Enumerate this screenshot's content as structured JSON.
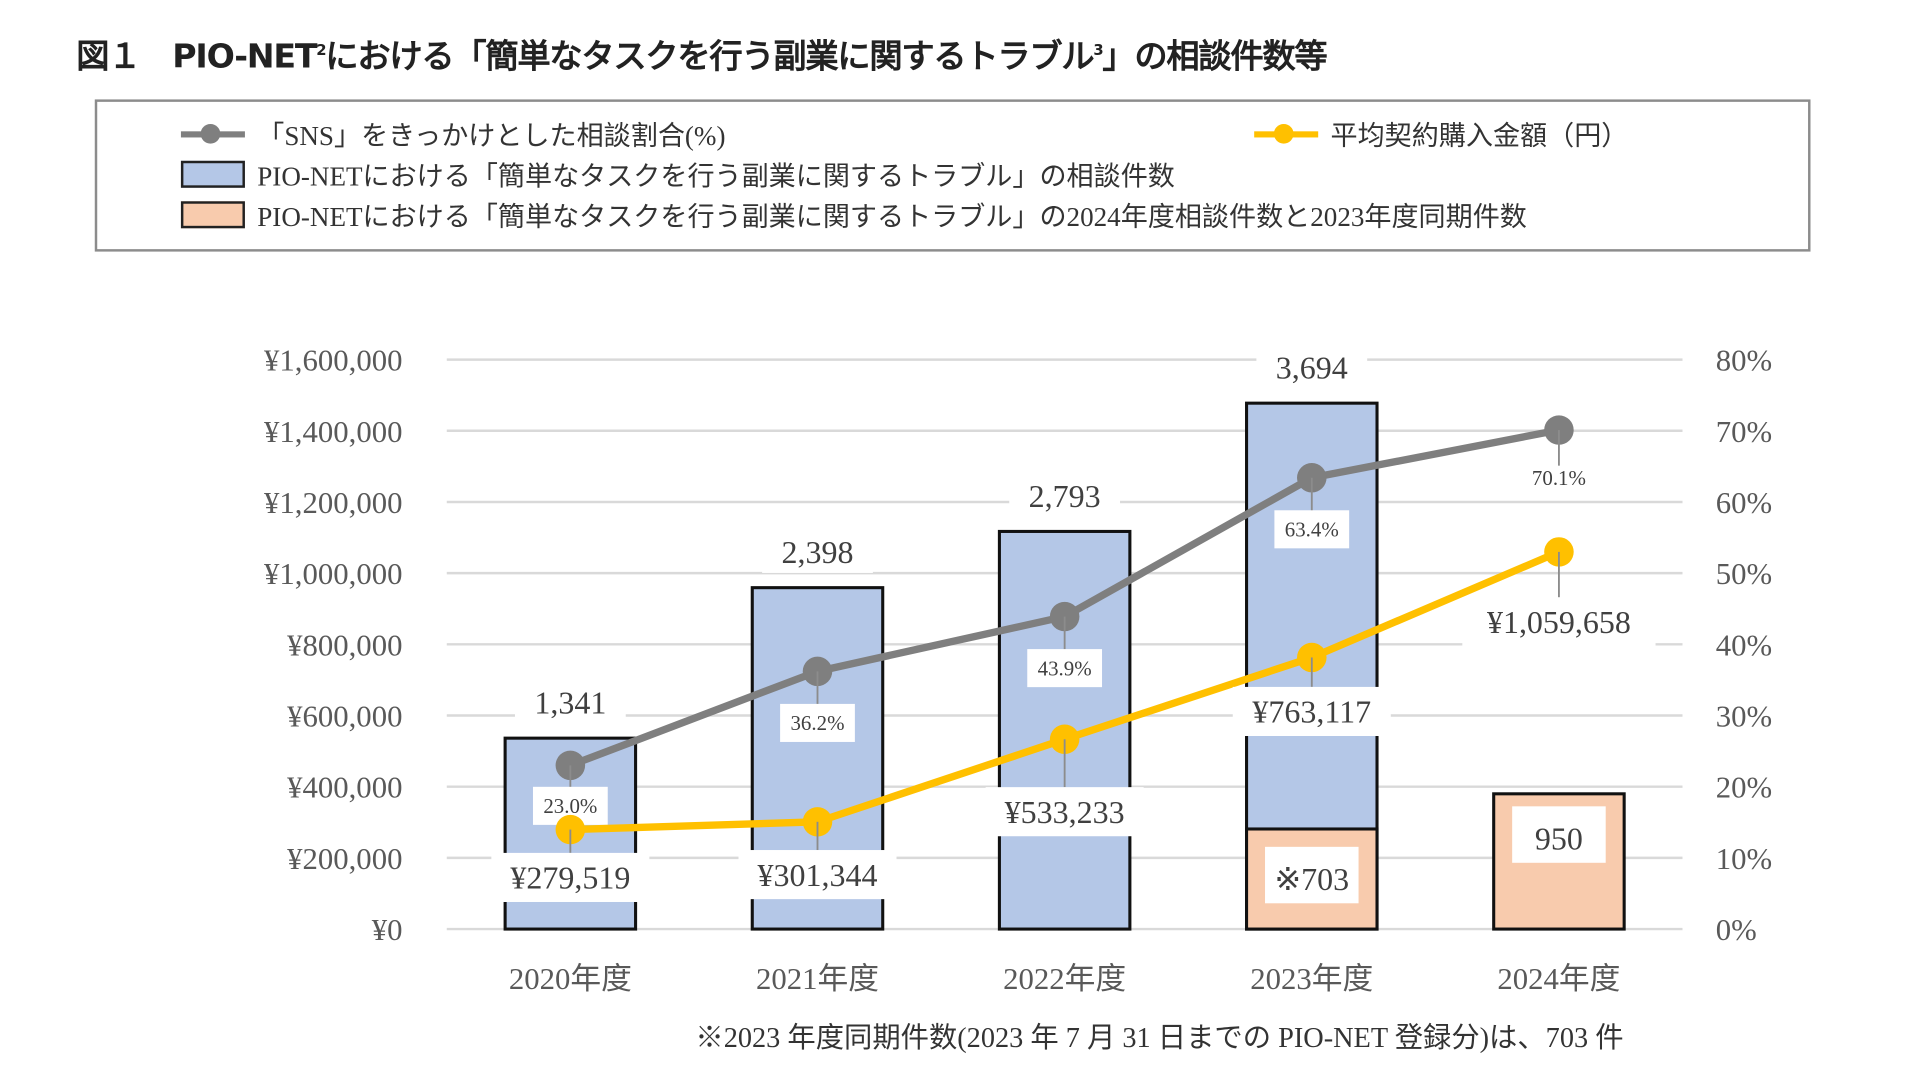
{
  "title": {
    "prefix": "図１　PIO-NET",
    "sup1": "2",
    "middle": "における「簡単なタスクを行う副業に関するトラブル",
    "sup2": "3",
    "suffix": "」の相談件数等"
  },
  "legend": {
    "sns_ratio": "「SNS」をきっかけとした相談割合(%)",
    "avg_amount": "平均契約購入金額（円）",
    "consultations": "PIO-NETにおける「簡単なタスクを行う副業に関するトラブル」の相談件数",
    "same_period": "PIO-NETにおける「簡単なタスクを行う副業に関するトラブル」の2024年度相談件数と2023年度同期件数"
  },
  "footnote": "※2023 年度同期件数(2023 年 7 月 31 日までの PIO-NET 登録分)は、703 件",
  "chart_data": {
    "type": "bar+line",
    "categories": [
      "2020年度",
      "2021年度",
      "2022年度",
      "2023年度",
      "2024年度"
    ],
    "left_axis": {
      "range": [
        0,
        1600000
      ],
      "ticks": [
        "¥0",
        "¥200,000",
        "¥400,000",
        "¥600,000",
        "¥800,000",
        "¥1,000,000",
        "¥1,200,000",
        "¥1,400,000",
        "¥1,600,000"
      ]
    },
    "right_axis": {
      "range": [
        0,
        80
      ],
      "ticks": [
        "0%",
        "10%",
        "20%",
        "30%",
        "40%",
        "50%",
        "60%",
        "70%",
        "80%"
      ]
    },
    "count_axis_range": [
      0,
      4000
    ],
    "grid": true,
    "series": [
      {
        "name": "PIO-NETにおける「簡単なタスクを行う副業に関するトラブル」の相談件数",
        "type": "bar",
        "color": "#b4c7e7",
        "values": [
          1341,
          2398,
          2793,
          3694,
          null
        ],
        "labels": [
          "1,341",
          "2,398",
          "2,793",
          "3,694",
          ""
        ]
      },
      {
        "name": "2024年度相談件数と2023年度同期件数",
        "type": "bar",
        "color": "#f8cbad",
        "values": [
          null,
          null,
          null,
          703,
          950
        ],
        "labels": [
          "",
          "",
          "",
          "※703",
          "950"
        ]
      },
      {
        "name": "「SNS」をきっかけとした相談割合(%)",
        "type": "line",
        "axis": "right",
        "color": "#7f7f7f",
        "values": [
          23.0,
          36.2,
          43.9,
          63.4,
          70.1
        ],
        "labels": [
          "23.0%",
          "36.2%",
          "43.9%",
          "63.4%",
          "70.1%"
        ]
      },
      {
        "name": "平均契約購入金額（円）",
        "type": "line",
        "axis": "left",
        "color": "#ffc000",
        "values": [
          279519,
          301344,
          533233,
          763117,
          1059658
        ],
        "labels": [
          "¥279,519",
          "¥301,344",
          "¥533,233",
          "¥763,117",
          "¥1,059,658"
        ]
      }
    ]
  }
}
